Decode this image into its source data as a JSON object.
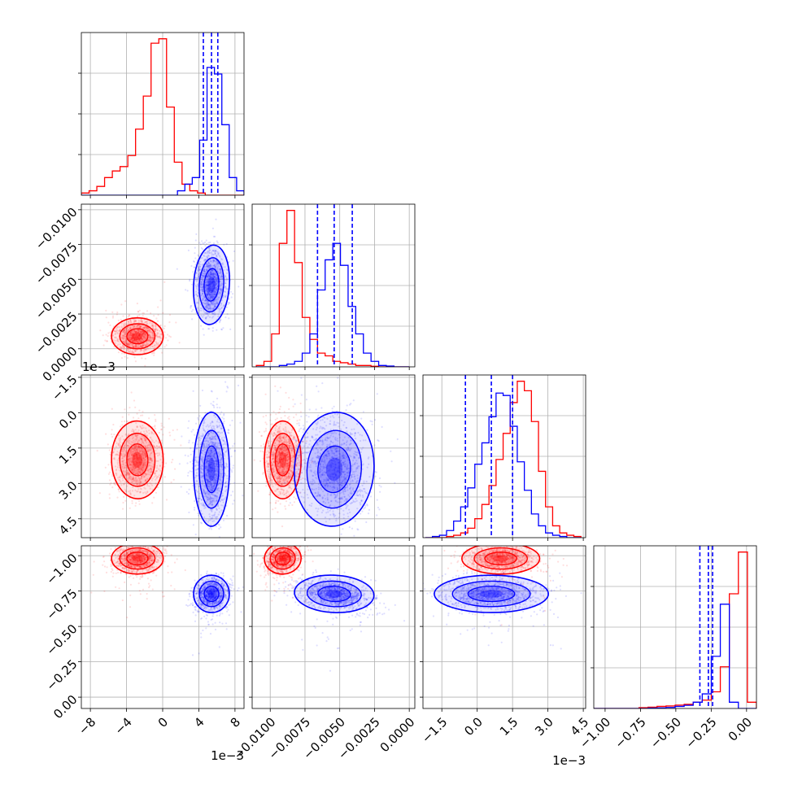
{
  "chart_data": {
    "type": "corner",
    "n_params": 4,
    "grid": true,
    "tick_labels": {
      "x": [
        [
          "−8",
          "−4",
          "0",
          "4",
          "8"
        ],
        [
          "−0.0100",
          "−0.0075",
          "−0.0050",
          "−0.0025",
          "0.0000"
        ],
        [
          "−1.5",
          "0.0",
          "1.5",
          "3.0",
          "4.5"
        ],
        [
          "−1.00",
          "−0.75",
          "−0.50",
          "−0.25",
          "0.00"
        ]
      ],
      "y": [
        [],
        [
          "0.0000",
          "−0.0025",
          "−0.0050",
          "−0.0075",
          "−0.0100"
        ],
        [
          "4.5",
          "3.0",
          "1.5",
          "0.0",
          "−1.5"
        ],
        [
          "0.00",
          "−0.25",
          "−0.50",
          "−0.75",
          "−1.00"
        ]
      ]
    },
    "offset_labels": {
      "col0_x": "1e−3",
      "col2_x": "1e−3",
      "row2_y": "1e−3"
    },
    "axes": [
      {
        "range": [
          -9,
          9
        ],
        "ticks": [
          -8,
          -4,
          0,
          4,
          8
        ]
      },
      {
        "range": [
          -0.0113,
          0.0004
        ],
        "ticks": [
          -0.01,
          -0.0075,
          -0.005,
          -0.0025,
          0
        ]
      },
      {
        "range": [
          -2.3,
          4.6
        ],
        "ticks": [
          -1.5,
          0,
          1.5,
          3,
          4.5
        ]
      },
      {
        "range": [
          -1.08,
          0.07
        ],
        "ticks": [
          -1,
          -0.75,
          -0.5,
          -0.25,
          0
        ]
      }
    ],
    "series": [
      {
        "color": "#ff0000",
        "means": [
          -2.8,
          -0.0091,
          1.0,
          -0.02
        ],
        "sds": [
          1.3,
          0.0006,
          0.75,
          0.05
        ],
        "corr": [
          [
            0,
            1,
            0.0
          ],
          [
            0,
            2,
            0.05
          ],
          [
            0,
            3,
            0.0
          ],
          [
            1,
            2,
            0.0
          ],
          [
            1,
            3,
            0.3
          ],
          [
            2,
            3,
            0.0
          ]
        ],
        "histograms": [
          {
            "counts": [
              1,
              2,
              4,
              8,
              11,
              13,
              18,
              30,
              45,
              69,
              71,
              40,
              15,
              5,
              2,
              1,
              0,
              0,
              0,
              0,
              0
            ],
            "edges": [
              -9.0,
              9.0
            ]
          },
          {
            "counts": [
              0.5,
              2,
              12,
              45,
              57,
              38,
              18,
              10,
              5,
              4,
              2,
              1.5,
              1,
              0.5,
              0.5,
              0.2,
              0,
              0,
              0,
              0
            ],
            "edges": [
              -0.011,
              0.0
            ]
          },
          {
            "counts": [
              0,
              0,
              0,
              0.5,
              1,
              2,
              4,
              8,
              14,
              22,
              33,
              44,
              57,
              66,
              62,
              49,
              28,
              13,
              5,
              2,
              1,
              0.5
            ],
            "edges": [
              -2.2,
              4.4
            ]
          },
          {
            "counts": [
              0,
              0,
              0,
              0,
              0,
              0.4,
              0.6,
              1,
              1.2,
              1.6,
              2,
              3,
              4,
              8,
              20,
              55,
              75,
              3
            ],
            "edges": [
              -1.08,
              0.07
            ]
          }
        ]
      },
      {
        "color": "#0000ff",
        "means": [
          5.4,
          -0.0054,
          0.6,
          -0.27
        ],
        "sds": [
          0.9,
          0.0013,
          1.1,
          0.06
        ],
        "corr": [
          [
            0,
            1,
            -0.1
          ],
          [
            0,
            2,
            0.0
          ],
          [
            0,
            3,
            0.1
          ],
          [
            1,
            2,
            -0.2
          ],
          [
            1,
            3,
            -0.35
          ],
          [
            2,
            3,
            0.0
          ]
        ],
        "quantiles": [
          [
            4.5,
            5.4,
            6.1
          ],
          [
            -0.0066,
            -0.0054,
            -0.0041
          ],
          [
            -0.5,
            0.6,
            1.5
          ],
          [
            -0.33,
            -0.27,
            -0.24
          ]
        ],
        "histograms": [
          {
            "counts": [
              0,
              0,
              0,
              0,
              0,
              0,
              0,
              0,
              0,
              0,
              0,
              0,
              0,
              2,
              5,
              8,
              25,
              58,
              55,
              32,
              8,
              2
            ],
            "edges": [
              -9.0,
              9.0
            ]
          },
          {
            "counts": [
              0,
              0,
              0,
              0.5,
              1,
              2,
              5,
              12,
              28,
              39,
              45,
              37,
              22,
              12,
              5,
              2,
              0.5,
              0.3,
              0,
              0
            ],
            "edges": [
              -0.011,
              0.0
            ]
          },
          {
            "counts": [
              0,
              0.5,
              1,
              3,
              7,
              13,
              21,
              31,
              40,
              51,
              61,
              60,
              47,
              32,
              20,
              10,
              5,
              2,
              1,
              0.5,
              0,
              0
            ],
            "edges": [
              -2.2,
              4.4
            ]
          },
          {
            "counts": [
              0,
              0,
              0,
              0,
              0,
              0,
              0.2,
              0.3,
              0.5,
              1,
              1.5,
              3,
              7,
              25,
              50,
              3,
              0,
              0
            ],
            "edges": [
              -1.08,
              0.07
            ]
          }
        ]
      }
    ]
  }
}
